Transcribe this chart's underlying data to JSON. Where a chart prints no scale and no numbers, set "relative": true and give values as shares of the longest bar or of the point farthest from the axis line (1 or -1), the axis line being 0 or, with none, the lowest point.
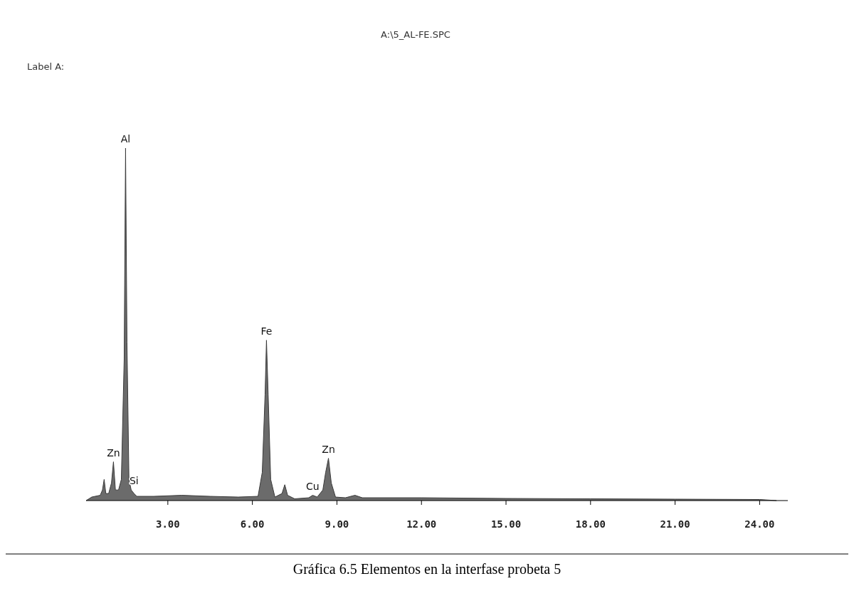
{
  "chart_data": {
    "type": "area",
    "title": "A:\\5_AL-FE.SPC",
    "subtitle": "Label A:",
    "relative": true,
    "color": "#3a3a3a",
    "x": [
      0.1,
      0.3,
      0.6,
      0.68,
      0.74,
      0.8,
      0.9,
      1.0,
      1.07,
      1.14,
      1.25,
      1.35,
      1.45,
      1.5,
      1.55,
      1.62,
      1.7,
      1.8,
      1.9,
      2.5,
      3.5,
      4.5,
      5.5,
      6.2,
      6.35,
      6.45,
      6.5,
      6.56,
      6.65,
      6.8,
      7.05,
      7.15,
      7.25,
      7.5,
      8.0,
      8.14,
      8.3,
      8.5,
      8.6,
      8.7,
      8.8,
      8.95,
      9.3,
      9.64,
      9.9,
      12,
      15,
      18,
      21,
      24,
      24.6
    ],
    "values": [
      0,
      0.01,
      0.015,
      0.03,
      0.06,
      0.02,
      0.02,
      0.05,
      0.11,
      0.03,
      0.03,
      0.06,
      0.4,
      1,
      0.45,
      0.06,
      0.03,
      0.02,
      0.012,
      0.012,
      0.015,
      0.012,
      0.01,
      0.012,
      0.08,
      0.3,
      0.455,
      0.3,
      0.06,
      0.01,
      0.02,
      0.045,
      0.015,
      0.005,
      0.008,
      0.015,
      0.01,
      0.03,
      0.08,
      0.12,
      0.05,
      0.01,
      0.008,
      0.015,
      0.008,
      0.008,
      0.006,
      0.005,
      0.004,
      0.003,
      0
    ],
    "xlim": [
      0.1,
      25
    ],
    "xticks": [
      {
        "value": 3,
        "label": "3.00"
      },
      {
        "value": 6,
        "label": "6.00"
      },
      {
        "value": 9,
        "label": "9.00"
      },
      {
        "value": 12,
        "label": "12.00"
      },
      {
        "value": 15,
        "label": "15.00"
      },
      {
        "value": 18,
        "label": "18.00"
      },
      {
        "value": 21,
        "label": "21.00"
      },
      {
        "value": 24,
        "label": "24.00"
      }
    ],
    "annotations": [
      {
        "text": "Al",
        "x": 1.5,
        "y": 1
      },
      {
        "text": "Zn",
        "x": 1.07,
        "y": 0.11
      },
      {
        "text": "Si",
        "x": 1.8,
        "y": 0.03
      },
      {
        "text": "Fe",
        "x": 6.5,
        "y": 0.455
      },
      {
        "text": "Cu",
        "x": 8.14,
        "y": 0.015
      },
      {
        "text": "Zn",
        "x": 8.7,
        "y": 0.12
      },
      "Gráfica 6.5 Elementos en la interfase probeta 5"
    ]
  }
}
